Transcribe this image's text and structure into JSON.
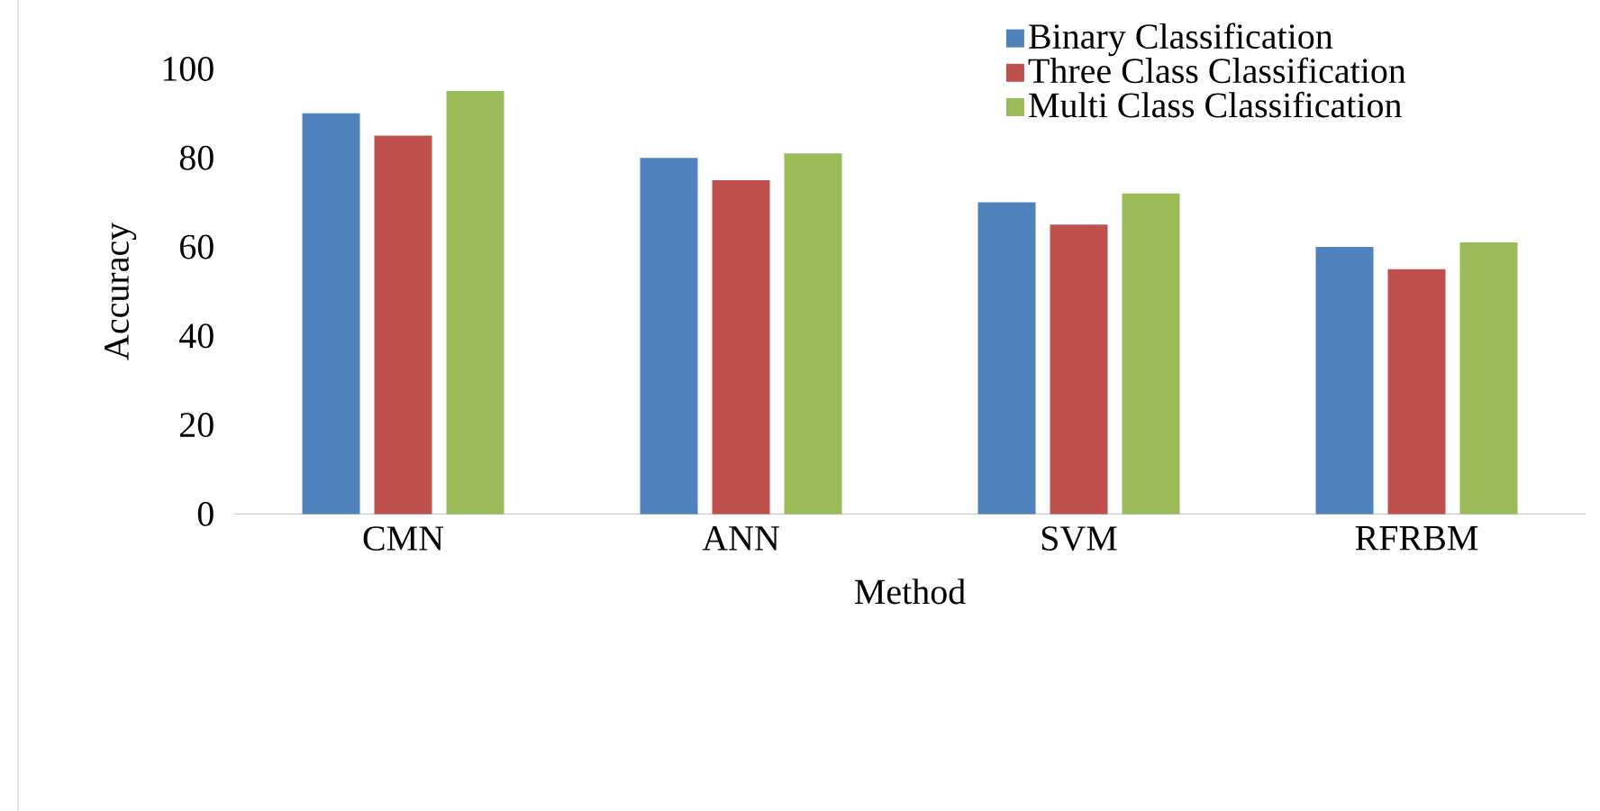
{
  "chart_data": {
    "type": "bar",
    "xlabel": "Method",
    "ylabel": "Accuracy",
    "categories": [
      "CMN",
      "ANN",
      "SVM",
      "RFRBM"
    ],
    "series": [
      {
        "name": "Binary Classification",
        "color": "#4f81bd",
        "values": [
          90,
          80,
          70,
          60
        ]
      },
      {
        "name": "Three Class Classification",
        "color": "#c0504d",
        "values": [
          85,
          75,
          65,
          55
        ]
      },
      {
        "name": "Multi Class Classification",
        "color": "#9bbb59",
        "values": [
          95,
          81,
          72,
          61
        ]
      }
    ],
    "ylim": [
      0,
      100
    ],
    "yticks": [
      0,
      20,
      40,
      60,
      80,
      100
    ],
    "legend": "top right"
  }
}
